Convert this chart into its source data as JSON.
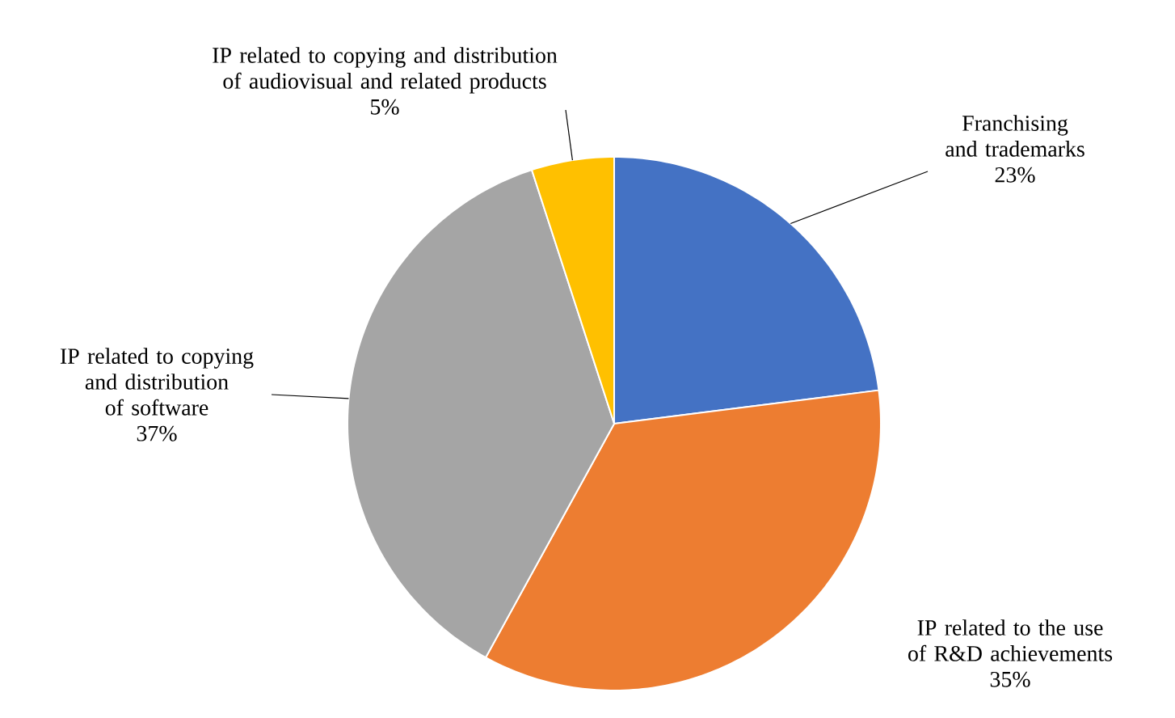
{
  "chart_data": {
    "type": "pie",
    "categories": [
      "Franchising and trademarks",
      "IP related to the use of R&D achievements",
      "IP related to copying and distribution of software",
      "IP related to copying and distribution of audiovisual and related products"
    ],
    "values": [
      23,
      35,
      37,
      5
    ],
    "colors": [
      "#4472c4",
      "#ed7d31",
      "#a5a5a5",
      "#ffc000"
    ],
    "value_labels": [
      "23%",
      "35%",
      "37%",
      "5%"
    ]
  }
}
